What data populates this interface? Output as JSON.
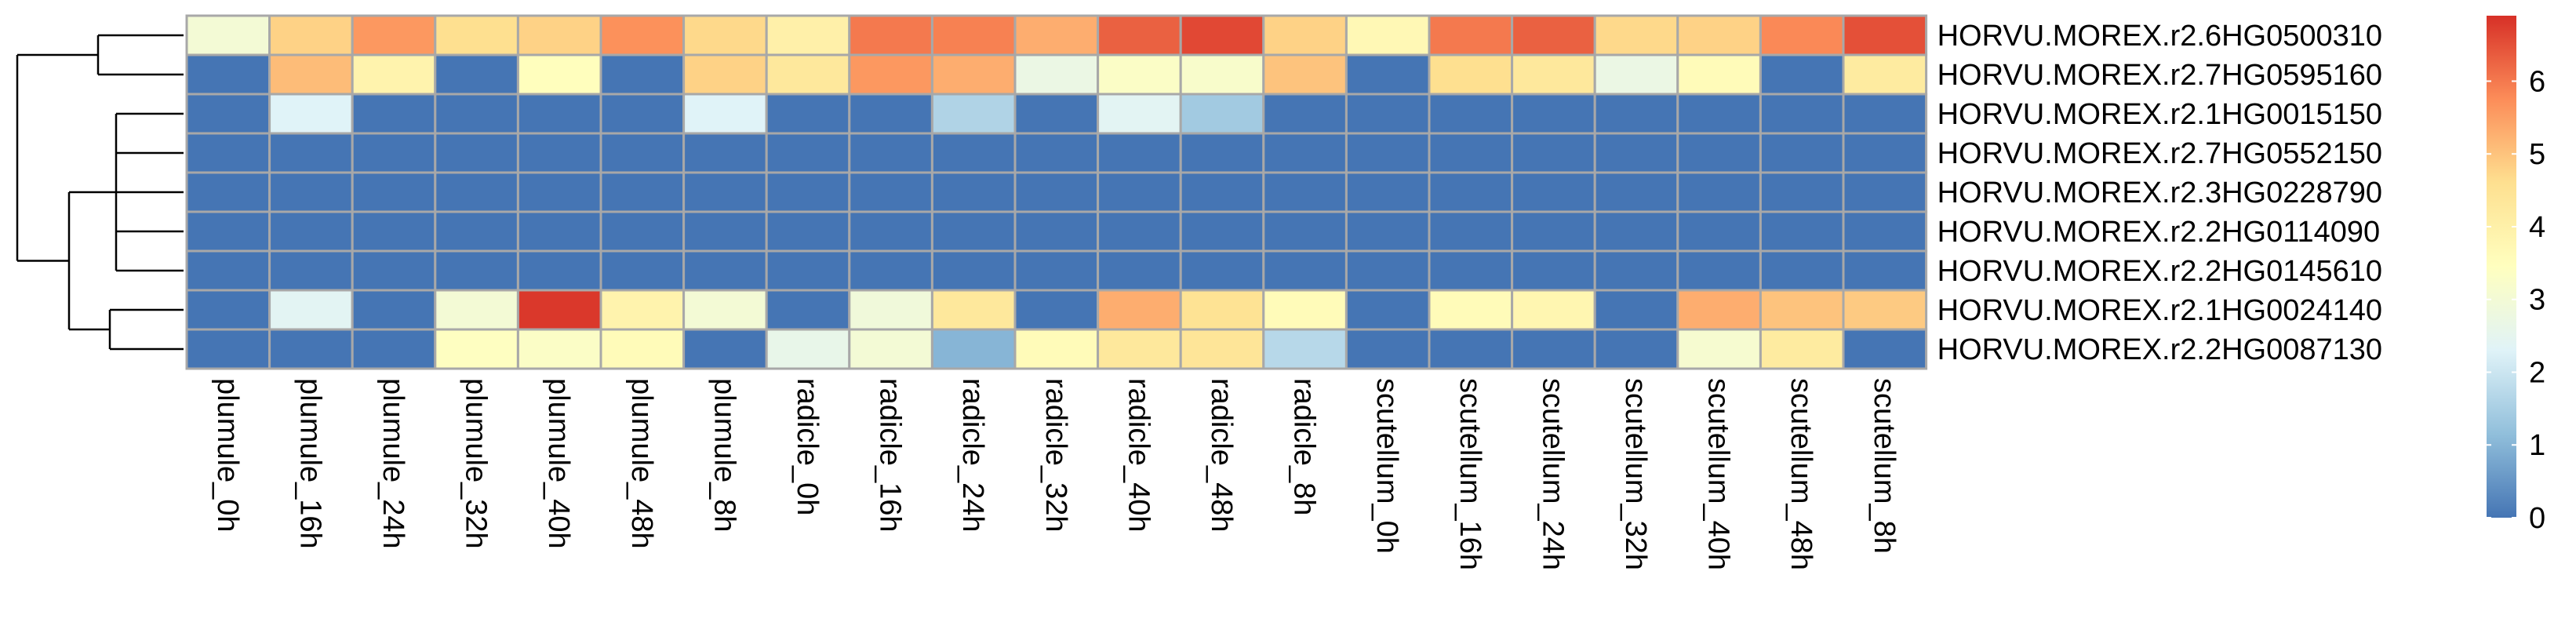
{
  "chart_data": {
    "type": "heatmap",
    "title": "",
    "xlabel": "",
    "ylabel": "",
    "rows": [
      "HORVU.MOREX.r2.6HG0500310",
      "HORVU.MOREX.r2.7HG0595160",
      "HORVU.MOREX.r2.1HG0015150",
      "HORVU.MOREX.r2.7HG0552150",
      "HORVU.MOREX.r2.3HG0228790",
      "HORVU.MOREX.r2.2HG0114090",
      "HORVU.MOREX.r2.2HG0145610",
      "HORVU.MOREX.r2.1HG0024140",
      "HORVU.MOREX.r2.2HG0087130"
    ],
    "columns": [
      "plumule_0h",
      "plumule_16h",
      "plumule_24h",
      "plumule_32h",
      "plumule_40h",
      "plumule_48h",
      "plumule_8h",
      "radicle_0h",
      "radicle_16h",
      "radicle_24h",
      "radicle_32h",
      "radicle_40h",
      "radicle_48h",
      "radicle_8h",
      "scutellum_0h",
      "scutellum_16h",
      "scutellum_24h",
      "scutellum_32h",
      "scutellum_40h",
      "scutellum_48h",
      "scutellum_8h"
    ],
    "values": [
      [
        3.0,
        4.8,
        5.6,
        4.6,
        4.8,
        5.7,
        4.7,
        4.0,
        6.0,
        5.9,
        5.3,
        6.3,
        6.6,
        4.8,
        3.7,
        6.0,
        6.3,
        4.7,
        4.8,
        5.8,
        6.5
      ],
      [
        0.0,
        5.1,
        3.9,
        0.0,
        3.5,
        0.0,
        4.8,
        4.3,
        5.6,
        5.3,
        2.7,
        3.3,
        3.2,
        5.0,
        0.0,
        4.6,
        4.3,
        2.7,
        3.6,
        0.0,
        4.2
      ],
      [
        0.0,
        2.3,
        0.0,
        0.0,
        0.0,
        0.0,
        2.3,
        0.0,
        0.0,
        1.6,
        0.0,
        2.4,
        1.4,
        0.0,
        0.0,
        0.0,
        0.0,
        0.0,
        0.0,
        0.0,
        0.0
      ],
      [
        0.0,
        0.0,
        0.0,
        0.0,
        0.0,
        0.0,
        0.0,
        0.0,
        0.0,
        0.0,
        0.0,
        0.0,
        0.0,
        0.0,
        0.0,
        0.0,
        0.0,
        0.0,
        0.0,
        0.0,
        0.0
      ],
      [
        0.0,
        0.0,
        0.0,
        0.0,
        0.0,
        0.0,
        0.0,
        0.0,
        0.0,
        0.0,
        0.0,
        0.0,
        0.0,
        0.0,
        0.0,
        0.0,
        0.0,
        0.0,
        0.0,
        0.0,
        0.0
      ],
      [
        0.0,
        0.0,
        0.0,
        0.0,
        0.0,
        0.0,
        0.0,
        0.0,
        0.0,
        0.0,
        0.0,
        0.0,
        0.0,
        0.0,
        0.0,
        0.0,
        0.0,
        0.0,
        0.0,
        0.0,
        0.0
      ],
      [
        0.0,
        0.0,
        0.0,
        0.0,
        0.0,
        0.0,
        0.0,
        0.0,
        0.0,
        0.0,
        0.0,
        0.0,
        0.0,
        0.0,
        0.0,
        0.0,
        0.0,
        0.0,
        0.0,
        0.0,
        0.0
      ],
      [
        0.0,
        2.4,
        0.0,
        3.0,
        6.8,
        3.9,
        3.0,
        0.0,
        2.9,
        4.3,
        0.0,
        5.3,
        4.5,
        3.6,
        0.0,
        3.6,
        3.8,
        0.0,
        5.3,
        5.0,
        4.9
      ],
      [
        0.0,
        0.0,
        0.0,
        3.4,
        3.3,
        3.6,
        0.0,
        2.6,
        3.0,
        1.0,
        3.6,
        4.3,
        4.4,
        1.7,
        0.0,
        0.0,
        0.0,
        0.0,
        3.1,
        4.2,
        0.0
      ]
    ],
    "color_scale": {
      "min": 0,
      "max": 6.9,
      "stops": [
        "#4575b4",
        "#91bfdb",
        "#e0f3f8",
        "#ffffbf",
        "#fee090",
        "#fc8d59",
        "#d73027"
      ],
      "ticks": [
        0,
        1,
        2,
        3,
        4,
        5,
        6
      ]
    },
    "legend_position": "right",
    "row_dendrogram": true,
    "grid": true
  }
}
